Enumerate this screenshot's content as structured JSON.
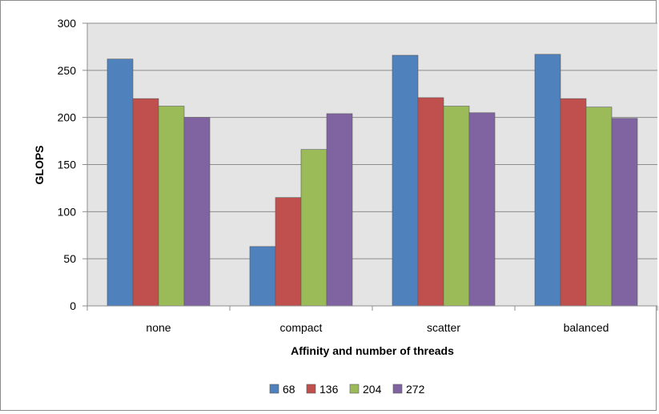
{
  "chart_data": {
    "type": "bar",
    "title": "",
    "xlabel": "Affinity and number of threads",
    "ylabel": "GLOPS",
    "categories": [
      "none",
      "compact",
      "scatter",
      "balanced"
    ],
    "series": [
      {
        "name": "68",
        "color": "#4f81bd",
        "values": [
          262,
          63,
          266,
          267
        ]
      },
      {
        "name": "136",
        "color": "#c0504d",
        "values": [
          220,
          115,
          221,
          220
        ]
      },
      {
        "name": "204",
        "color": "#9bbb59",
        "values": [
          212,
          166,
          212,
          211
        ]
      },
      {
        "name": "272",
        "color": "#8064a2",
        "values": [
          200,
          204,
          205,
          199
        ]
      }
    ],
    "ylim": [
      0,
      300
    ],
    "yticks": [
      0,
      50,
      100,
      150,
      200,
      250,
      300
    ],
    "grid": true,
    "plot_background": "#e4e4e4",
    "legend_position": "bottom"
  }
}
